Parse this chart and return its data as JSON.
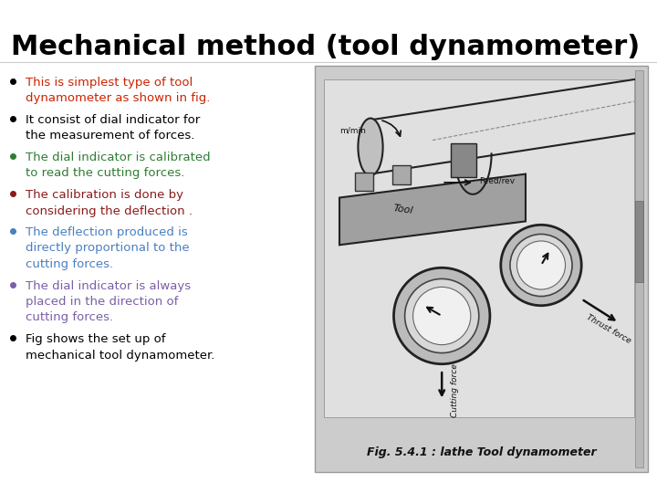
{
  "title": "Mechanical method (tool dynamometer)",
  "title_color": "#000000",
  "title_fontsize": 22,
  "slide_bg": "#ffffff",
  "bullet_points": [
    {
      "text": "This is simplest type of tool\ndynamometer as shown in fig.",
      "color": "#cc2200",
      "bullet_color": "#000000"
    },
    {
      "text": "It consist of dial indicator for\nthe measurement of forces.",
      "color": "#000000",
      "bullet_color": "#000000"
    },
    {
      "text": "The dial indicator is calibrated\nto read the cutting forces.",
      "color": "#2e7d32",
      "bullet_color": "#2e7d32"
    },
    {
      "text": "The calibration is done by\nconsidering the deflection .",
      "color": "#8b1a1a",
      "bullet_color": "#8b1a1a"
    },
    {
      "text": "The deflection produced is\ndirectly proportional to the\ncutting forces.",
      "color": "#4a7fc1",
      "bullet_color": "#4a7fc1"
    },
    {
      "text": "The dial indicator is always\nplaced in the direction of\ncutting forces.",
      "color": "#7b5ea7",
      "bullet_color": "#7b5ea7"
    },
    {
      "text": "Fig shows the set up of\nmechanical tool dynamometer.",
      "color": "#000000",
      "bullet_color": "#000000"
    }
  ],
  "bullet_fontsize": 9.5,
  "image_caption": "Fig. 5.4.1 : lathe Tool dynamometer",
  "img_bg_color": "#c8c8c8",
  "img_border_color": "#999999"
}
